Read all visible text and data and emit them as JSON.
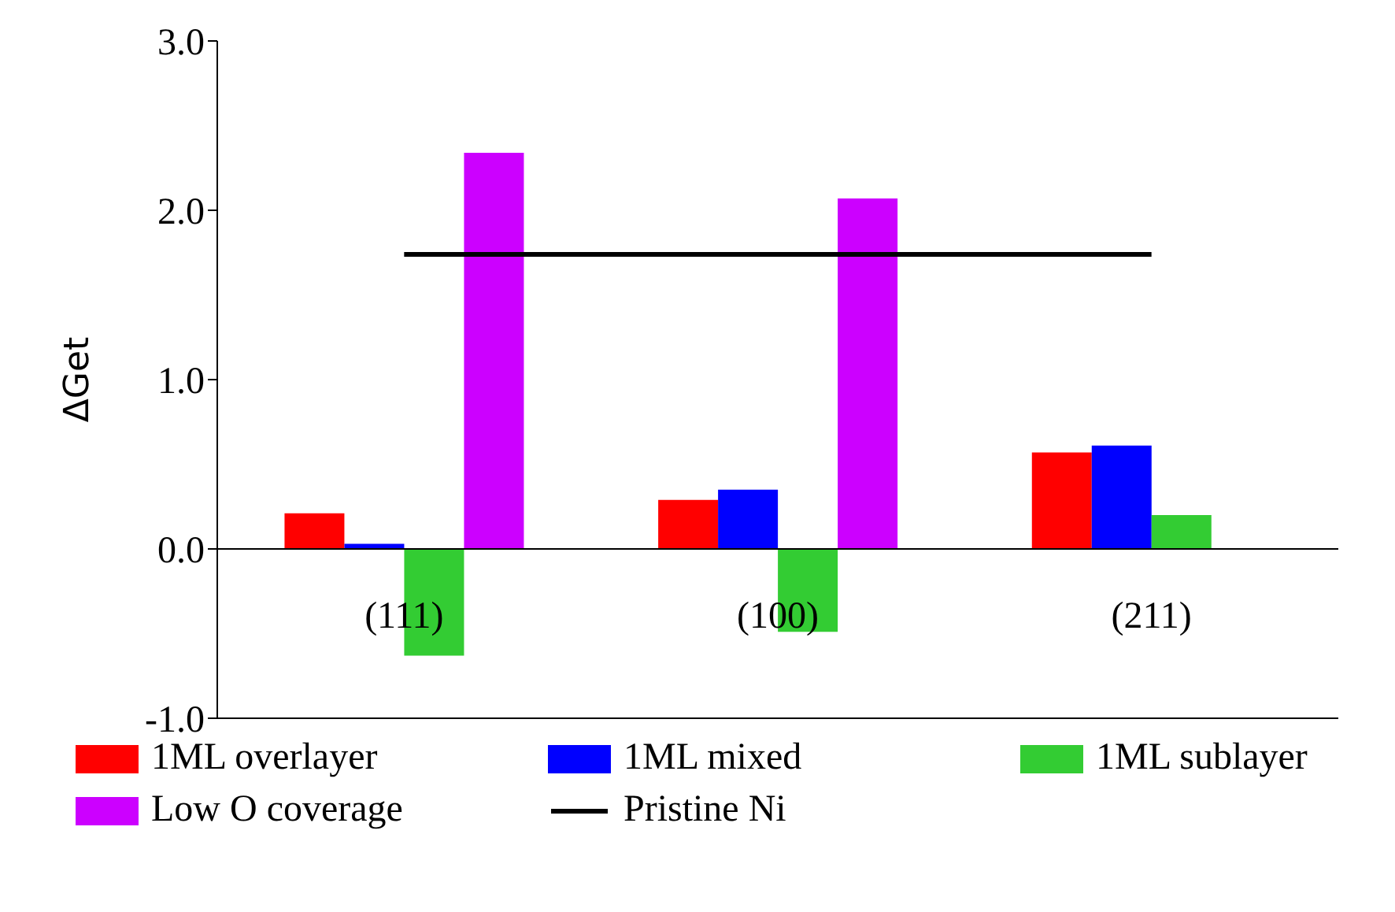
{
  "chart_data": {
    "type": "bar",
    "ylabel": "ΔGet",
    "categories": [
      "(111)",
      "(100)",
      "(211)"
    ],
    "series": [
      {
        "name": "1ML overlayer",
        "color": "#ff0000",
        "values": [
          0.21,
          0.29,
          0.57
        ]
      },
      {
        "name": "1ML mixed",
        "color": "#0000ff",
        "values": [
          0.03,
          0.35,
          0.61
        ]
      },
      {
        "name": "1ML sublayer",
        "color": "#33cc33",
        "values": [
          -0.63,
          -0.49,
          0.2
        ]
      },
      {
        "name": "Low O coverage",
        "color": "#cc00ff",
        "values": [
          2.34,
          2.07,
          null
        ]
      },
      {
        "name": "Pristine Ni",
        "type": "line",
        "color": "#000000",
        "values": [
          1.74,
          1.74,
          1.74
        ]
      }
    ],
    "ylim": [
      -1,
      3
    ],
    "yticks": [
      {
        "value": -1,
        "label": "-1.0"
      },
      {
        "value": 0,
        "label": "0.0"
      },
      {
        "value": 1,
        "label": "1.0"
      },
      {
        "value": 2,
        "label": "2.0"
      },
      {
        "value": 3,
        "label": "3.0"
      }
    ],
    "grid": false,
    "legend": "bottom",
    "marker": "none"
  }
}
